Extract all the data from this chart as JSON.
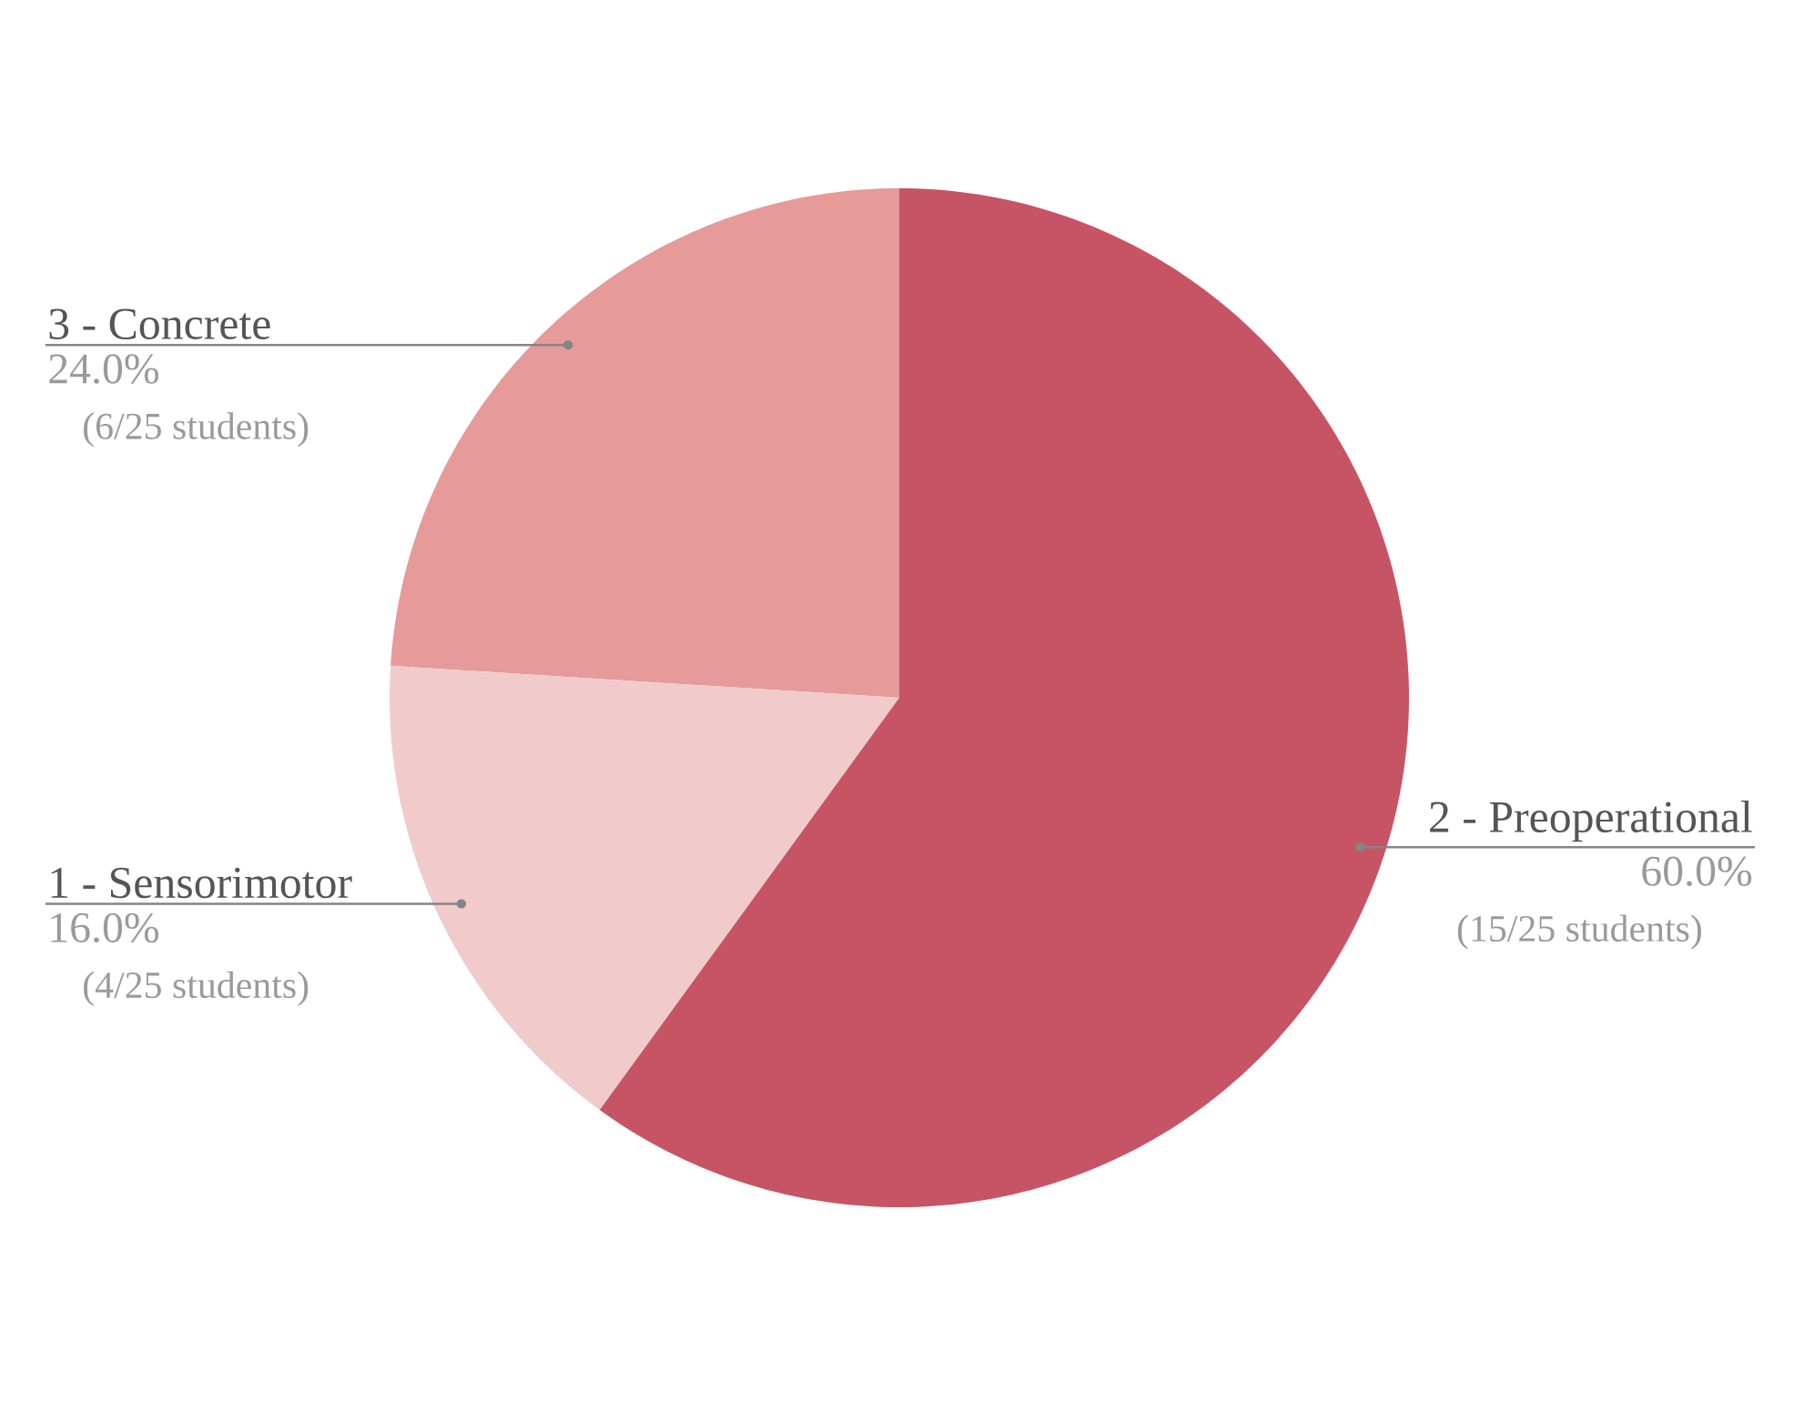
{
  "chart_data": {
    "type": "pie",
    "categories": [
      "2 - Preoperational",
      "1 - Sensorimotor",
      "3 - Concrete"
    ],
    "values": [
      60,
      16,
      24
    ],
    "colors": [
      "#c75464",
      "#f1cbcc",
      "#e69a9a"
    ],
    "value_labels": [
      "60.0%",
      "16.0%",
      "24.0%"
    ],
    "annotations": [
      "(15/25 students)",
      "(4/25 students)",
      "(6/25 students)"
    ]
  }
}
